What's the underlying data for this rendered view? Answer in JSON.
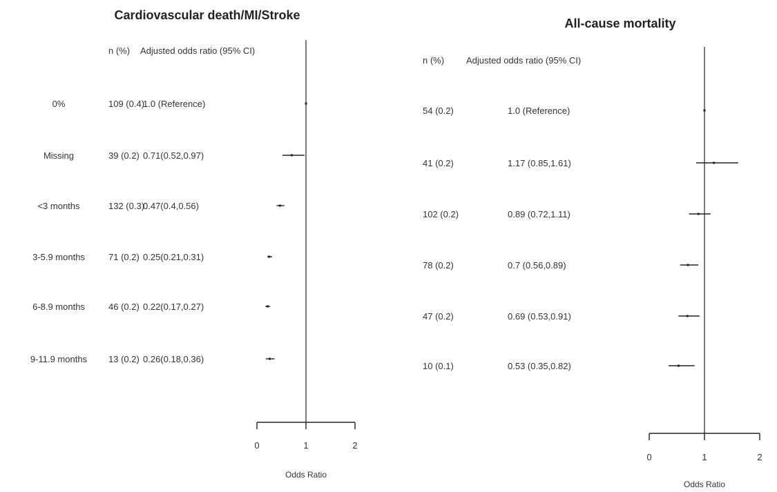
{
  "chart_data": [
    {
      "type": "forest",
      "title": "Cardiovascular death/MI/Stroke",
      "header": {
        "n": "n (%)",
        "estimate": "Adjusted odds ratio (95% CI)"
      },
      "xlabel": "Odds Ratio",
      "xlim": [
        0,
        2
      ],
      "xticks": [
        "0",
        "1",
        "2"
      ],
      "reference_line": 1,
      "rows": [
        {
          "label": "0%",
          "n": "109 (0.4)",
          "text": "1.0 (Reference)",
          "est": 1.0,
          "lo": 1.0,
          "hi": 1.0
        },
        {
          "label": "Missing",
          "n": "39 (0.2)",
          "text": "0.71(0.52,0.97)",
          "est": 0.71,
          "lo": 0.52,
          "hi": 0.97
        },
        {
          "label": "<3 months",
          "n": "132 (0.3)",
          "text": "0.47(0.4,0.56)",
          "est": 0.47,
          "lo": 0.4,
          "hi": 0.56
        },
        {
          "label": "3-5.9 months",
          "n": "71 (0.2)",
          "text": "0.25(0.21,0.31)",
          "est": 0.25,
          "lo": 0.21,
          "hi": 0.31
        },
        {
          "label": "6-8.9 months",
          "n": "46 (0.2)",
          "text": "0.22(0.17,0.27)",
          "est": 0.22,
          "lo": 0.17,
          "hi": 0.27
        },
        {
          "label": "9-11.9 months",
          "n": "13 (0.2)",
          "text": "0.26(0.18,0.36)",
          "est": 0.26,
          "lo": 0.18,
          "hi": 0.36
        }
      ]
    },
    {
      "type": "forest",
      "title": "All-cause mortality",
      "header": {
        "n": "n (%)",
        "estimate": "Adjusted odds ratio (95% CI)"
      },
      "xlabel": "Odds Ratio",
      "xlim": [
        0,
        2
      ],
      "xticks": [
        "0",
        "1",
        "2"
      ],
      "reference_line": 1,
      "rows": [
        {
          "n": "54 (0.2)",
          "text": "1.0 (Reference)",
          "est": 1.0,
          "lo": 1.0,
          "hi": 1.0
        },
        {
          "n": "41 (0.2)",
          "text": "1.17 (0.85,1.61)",
          "est": 1.17,
          "lo": 0.85,
          "hi": 1.61
        },
        {
          "n": "102 (0.2)",
          "text": "0.89 (0.72,1.11)",
          "est": 0.89,
          "lo": 0.72,
          "hi": 1.11
        },
        {
          "n": "78 (0.2)",
          "text": "0.7 (0.56,0.89)",
          "est": 0.7,
          "lo": 0.56,
          "hi": 0.89
        },
        {
          "n": "47 (0.2)",
          "text": "0.69 (0.53,0.91)",
          "est": 0.69,
          "lo": 0.53,
          "hi": 0.91
        },
        {
          "n": "10 (0.1)",
          "text": "0.53 (0.35,0.82)",
          "est": 0.53,
          "lo": 0.35,
          "hi": 0.82
        }
      ]
    }
  ]
}
